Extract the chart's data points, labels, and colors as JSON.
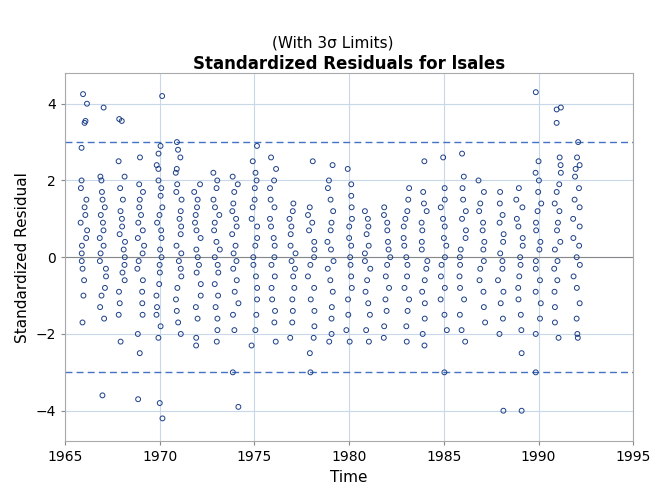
{
  "title": "Standardized Residuals for lsales",
  "subtitle": "(With 3σ Limits)",
  "xlabel": "Time",
  "ylabel": "Standardized Residual",
  "xlim": [
    1965,
    1995
  ],
  "ylim": [
    -4.8,
    4.8
  ],
  "xticks": [
    1965,
    1970,
    1975,
    1980,
    1985,
    1990,
    1995
  ],
  "yticks": [
    -4,
    -2,
    0,
    2,
    4
  ],
  "hline_y": 0,
  "dashed_lines": [
    3.0,
    -3.0
  ],
  "marker_color": "#1c3f87",
  "marker_size": 3.5,
  "marker_linewidth": 0.7,
  "background_color": "#ffffff",
  "plot_bg_color": "#ffffff",
  "grid_color": "#c8d8e8",
  "dashed_color": "#4472c4",
  "seed": 42,
  "special_points": [
    [
      1966,
      4.25
    ],
    [
      1966,
      4.0
    ],
    [
      1966,
      3.55
    ],
    [
      1966,
      3.5
    ],
    [
      1966,
      2.85
    ],
    [
      1966,
      2.0
    ],
    [
      1966,
      1.8
    ],
    [
      1966,
      1.5
    ],
    [
      1966,
      1.3
    ],
    [
      1966,
      1.1
    ],
    [
      1966,
      0.9
    ],
    [
      1966,
      0.7
    ],
    [
      1966,
      0.5
    ],
    [
      1966,
      0.3
    ],
    [
      1966,
      0.1
    ],
    [
      1966,
      -0.1
    ],
    [
      1966,
      -0.3
    ],
    [
      1966,
      -0.6
    ],
    [
      1966,
      -1.0
    ],
    [
      1966,
      -1.7
    ],
    [
      1967,
      3.9
    ],
    [
      1967,
      2.1
    ],
    [
      1967,
      2.0
    ],
    [
      1967,
      1.7
    ],
    [
      1967,
      1.5
    ],
    [
      1967,
      1.3
    ],
    [
      1967,
      1.1
    ],
    [
      1967,
      0.9
    ],
    [
      1967,
      0.7
    ],
    [
      1967,
      0.5
    ],
    [
      1967,
      0.3
    ],
    [
      1967,
      0.1
    ],
    [
      1967,
      -0.1
    ],
    [
      1967,
      -0.3
    ],
    [
      1967,
      -0.5
    ],
    [
      1967,
      -0.8
    ],
    [
      1967,
      -1.0
    ],
    [
      1967,
      -1.3
    ],
    [
      1967,
      -1.6
    ],
    [
      1967,
      -3.6
    ],
    [
      1968,
      3.6
    ],
    [
      1968,
      3.55
    ],
    [
      1968,
      2.5
    ],
    [
      1968,
      2.1
    ],
    [
      1968,
      1.8
    ],
    [
      1968,
      1.5
    ],
    [
      1968,
      1.2
    ],
    [
      1968,
      1.0
    ],
    [
      1968,
      0.8
    ],
    [
      1968,
      0.6
    ],
    [
      1968,
      0.4
    ],
    [
      1968,
      0.2
    ],
    [
      1968,
      0.0
    ],
    [
      1968,
      -0.2
    ],
    [
      1968,
      -0.4
    ],
    [
      1968,
      -0.6
    ],
    [
      1968,
      -0.9
    ],
    [
      1968,
      -1.2
    ],
    [
      1968,
      -1.5
    ],
    [
      1968,
      -2.2
    ],
    [
      1969,
      2.6
    ],
    [
      1969,
      1.9
    ],
    [
      1969,
      1.7
    ],
    [
      1969,
      1.5
    ],
    [
      1969,
      1.3
    ],
    [
      1969,
      1.1
    ],
    [
      1969,
      0.9
    ],
    [
      1969,
      0.7
    ],
    [
      1969,
      0.5
    ],
    [
      1969,
      0.3
    ],
    [
      1969,
      0.1
    ],
    [
      1969,
      -0.1
    ],
    [
      1969,
      -0.3
    ],
    [
      1969,
      -0.6
    ],
    [
      1969,
      -0.9
    ],
    [
      1969,
      -1.2
    ],
    [
      1969,
      -1.5
    ],
    [
      1969,
      -2.0
    ],
    [
      1969,
      -2.5
    ],
    [
      1969,
      -3.7
    ],
    [
      1970,
      4.2
    ],
    [
      1970,
      2.9
    ],
    [
      1970,
      2.7
    ],
    [
      1970,
      2.4
    ],
    [
      1970,
      2.3
    ],
    [
      1970,
      2.0
    ],
    [
      1970,
      1.8
    ],
    [
      1970,
      1.6
    ],
    [
      1970,
      1.3
    ],
    [
      1970,
      1.1
    ],
    [
      1970,
      0.9
    ],
    [
      1970,
      0.7
    ],
    [
      1970,
      0.5
    ],
    [
      1970,
      0.2
    ],
    [
      1970,
      0.0
    ],
    [
      1970,
      -0.2
    ],
    [
      1970,
      -0.4
    ],
    [
      1970,
      -0.7
    ],
    [
      1970,
      -1.0
    ],
    [
      1970,
      -1.3
    ],
    [
      1970,
      -1.5
    ],
    [
      1970,
      -1.8
    ],
    [
      1970,
      -2.1
    ],
    [
      1970,
      -3.8
    ],
    [
      1970,
      -4.2
    ],
    [
      1971,
      3.0
    ],
    [
      1971,
      2.8
    ],
    [
      1971,
      2.6
    ],
    [
      1971,
      2.3
    ],
    [
      1971,
      2.2
    ],
    [
      1971,
      1.9
    ],
    [
      1971,
      1.7
    ],
    [
      1971,
      1.5
    ],
    [
      1971,
      1.2
    ],
    [
      1971,
      1.0
    ],
    [
      1971,
      0.8
    ],
    [
      1971,
      0.6
    ],
    [
      1971,
      0.3
    ],
    [
      1971,
      0.1
    ],
    [
      1971,
      -0.1
    ],
    [
      1971,
      -0.3
    ],
    [
      1971,
      -0.5
    ],
    [
      1971,
      -0.8
    ],
    [
      1971,
      -1.1
    ],
    [
      1971,
      -1.4
    ],
    [
      1971,
      -1.7
    ],
    [
      1971,
      -2.0
    ],
    [
      1972,
      1.9
    ],
    [
      1972,
      1.7
    ],
    [
      1972,
      1.5
    ],
    [
      1972,
      1.3
    ],
    [
      1972,
      1.1
    ],
    [
      1972,
      0.9
    ],
    [
      1972,
      0.7
    ],
    [
      1972,
      0.5
    ],
    [
      1972,
      0.2
    ],
    [
      1972,
      0.0
    ],
    [
      1972,
      -0.2
    ],
    [
      1972,
      -0.4
    ],
    [
      1972,
      -0.7
    ],
    [
      1972,
      -1.0
    ],
    [
      1972,
      -1.3
    ],
    [
      1972,
      -1.6
    ],
    [
      1972,
      -2.1
    ],
    [
      1972,
      -2.3
    ],
    [
      1973,
      2.2
    ],
    [
      1973,
      2.0
    ],
    [
      1973,
      1.8
    ],
    [
      1973,
      1.5
    ],
    [
      1973,
      1.3
    ],
    [
      1973,
      1.1
    ],
    [
      1973,
      0.9
    ],
    [
      1973,
      0.7
    ],
    [
      1973,
      0.4
    ],
    [
      1973,
      0.2
    ],
    [
      1973,
      0.0
    ],
    [
      1973,
      -0.2
    ],
    [
      1973,
      -0.4
    ],
    [
      1973,
      -0.7
    ],
    [
      1973,
      -1.0
    ],
    [
      1973,
      -1.3
    ],
    [
      1973,
      -1.6
    ],
    [
      1973,
      -1.9
    ],
    [
      1973,
      -2.2
    ],
    [
      1974,
      2.1
    ],
    [
      1974,
      1.9
    ],
    [
      1974,
      1.7
    ],
    [
      1974,
      1.4
    ],
    [
      1974,
      1.2
    ],
    [
      1974,
      1.0
    ],
    [
      1974,
      0.8
    ],
    [
      1974,
      0.6
    ],
    [
      1974,
      0.3
    ],
    [
      1974,
      0.1
    ],
    [
      1974,
      -0.1
    ],
    [
      1974,
      -0.3
    ],
    [
      1974,
      -0.6
    ],
    [
      1974,
      -0.9
    ],
    [
      1974,
      -1.2
    ],
    [
      1974,
      -1.5
    ],
    [
      1974,
      -1.9
    ],
    [
      1974,
      -3.0
    ],
    [
      1974,
      -3.9
    ],
    [
      1975,
      2.9
    ],
    [
      1975,
      2.5
    ],
    [
      1975,
      2.2
    ],
    [
      1975,
      2.0
    ],
    [
      1975,
      1.8
    ],
    [
      1975,
      1.5
    ],
    [
      1975,
      1.3
    ],
    [
      1975,
      1.0
    ],
    [
      1975,
      0.8
    ],
    [
      1975,
      0.5
    ],
    [
      1975,
      0.3
    ],
    [
      1975,
      0.0
    ],
    [
      1975,
      -0.2
    ],
    [
      1975,
      -0.5
    ],
    [
      1975,
      -0.8
    ],
    [
      1975,
      -1.1
    ],
    [
      1975,
      -1.5
    ],
    [
      1975,
      -1.9
    ],
    [
      1975,
      -2.3
    ],
    [
      1976,
      2.6
    ],
    [
      1976,
      2.3
    ],
    [
      1976,
      2.0
    ],
    [
      1976,
      1.8
    ],
    [
      1976,
      1.5
    ],
    [
      1976,
      1.3
    ],
    [
      1976,
      1.0
    ],
    [
      1976,
      0.8
    ],
    [
      1976,
      0.5
    ],
    [
      1976,
      0.3
    ],
    [
      1976,
      0.0
    ],
    [
      1976,
      -0.2
    ],
    [
      1976,
      -0.5
    ],
    [
      1976,
      -0.8
    ],
    [
      1976,
      -1.1
    ],
    [
      1976,
      -1.4
    ],
    [
      1976,
      -1.7
    ],
    [
      1976,
      -2.2
    ],
    [
      1977,
      1.4
    ],
    [
      1977,
      1.2
    ],
    [
      1977,
      1.0
    ],
    [
      1977,
      0.8
    ],
    [
      1977,
      0.6
    ],
    [
      1977,
      0.3
    ],
    [
      1977,
      0.1
    ],
    [
      1977,
      -0.1
    ],
    [
      1977,
      -0.3
    ],
    [
      1977,
      -0.5
    ],
    [
      1977,
      -0.8
    ],
    [
      1977,
      -1.1
    ],
    [
      1977,
      -1.4
    ],
    [
      1977,
      -1.7
    ],
    [
      1977,
      -2.1
    ],
    [
      1978,
      2.5
    ],
    [
      1978,
      1.3
    ],
    [
      1978,
      1.1
    ],
    [
      1978,
      0.9
    ],
    [
      1978,
      0.7
    ],
    [
      1978,
      0.4
    ],
    [
      1978,
      0.2
    ],
    [
      1978,
      0.0
    ],
    [
      1978,
      -0.2
    ],
    [
      1978,
      -0.5
    ],
    [
      1978,
      -0.8
    ],
    [
      1978,
      -1.1
    ],
    [
      1978,
      -1.4
    ],
    [
      1978,
      -1.8
    ],
    [
      1978,
      -2.1
    ],
    [
      1978,
      -2.5
    ],
    [
      1978,
      -3.0
    ],
    [
      1979,
      2.4
    ],
    [
      1979,
      2.0
    ],
    [
      1979,
      1.8
    ],
    [
      1979,
      1.5
    ],
    [
      1979,
      1.2
    ],
    [
      1979,
      0.9
    ],
    [
      1979,
      0.7
    ],
    [
      1979,
      0.4
    ],
    [
      1979,
      0.2
    ],
    [
      1979,
      -0.1
    ],
    [
      1979,
      -0.3
    ],
    [
      1979,
      -0.6
    ],
    [
      1979,
      -0.9
    ],
    [
      1979,
      -1.3
    ],
    [
      1979,
      -1.6
    ],
    [
      1979,
      -2.0
    ],
    [
      1979,
      -2.2
    ],
    [
      1980,
      2.3
    ],
    [
      1980,
      1.9
    ],
    [
      1980,
      1.6
    ],
    [
      1980,
      1.3
    ],
    [
      1980,
      1.0
    ],
    [
      1980,
      0.8
    ],
    [
      1980,
      0.5
    ],
    [
      1980,
      0.3
    ],
    [
      1980,
      0.0
    ],
    [
      1980,
      -0.2
    ],
    [
      1980,
      -0.5
    ],
    [
      1980,
      -0.8
    ],
    [
      1980,
      -1.1
    ],
    [
      1980,
      -1.5
    ],
    [
      1980,
      -1.9
    ],
    [
      1980,
      -2.2
    ],
    [
      1981,
      1.2
    ],
    [
      1981,
      1.0
    ],
    [
      1981,
      0.8
    ],
    [
      1981,
      0.6
    ],
    [
      1981,
      0.3
    ],
    [
      1981,
      0.1
    ],
    [
      1981,
      -0.1
    ],
    [
      1981,
      -0.3
    ],
    [
      1981,
      -0.6
    ],
    [
      1981,
      -0.9
    ],
    [
      1981,
      -1.2
    ],
    [
      1981,
      -1.5
    ],
    [
      1981,
      -1.9
    ],
    [
      1981,
      -2.2
    ],
    [
      1982,
      1.3
    ],
    [
      1982,
      1.1
    ],
    [
      1982,
      0.9
    ],
    [
      1982,
      0.7
    ],
    [
      1982,
      0.4
    ],
    [
      1982,
      0.2
    ],
    [
      1982,
      0.0
    ],
    [
      1982,
      -0.2
    ],
    [
      1982,
      -0.5
    ],
    [
      1982,
      -0.8
    ],
    [
      1982,
      -1.1
    ],
    [
      1982,
      -1.4
    ],
    [
      1982,
      -1.8
    ],
    [
      1982,
      -2.1
    ],
    [
      1983,
      1.8
    ],
    [
      1983,
      1.5
    ],
    [
      1983,
      1.2
    ],
    [
      1983,
      1.0
    ],
    [
      1983,
      0.8
    ],
    [
      1983,
      0.5
    ],
    [
      1983,
      0.3
    ],
    [
      1983,
      0.0
    ],
    [
      1983,
      -0.2
    ],
    [
      1983,
      -0.5
    ],
    [
      1983,
      -0.8
    ],
    [
      1983,
      -1.1
    ],
    [
      1983,
      -1.4
    ],
    [
      1983,
      -1.8
    ],
    [
      1983,
      -2.2
    ],
    [
      1984,
      2.5
    ],
    [
      1984,
      1.7
    ],
    [
      1984,
      1.4
    ],
    [
      1984,
      1.2
    ],
    [
      1984,
      0.9
    ],
    [
      1984,
      0.7
    ],
    [
      1984,
      0.4
    ],
    [
      1984,
      0.2
    ],
    [
      1984,
      -0.1
    ],
    [
      1984,
      -0.3
    ],
    [
      1984,
      -0.6
    ],
    [
      1984,
      -0.9
    ],
    [
      1984,
      -1.2
    ],
    [
      1984,
      -1.6
    ],
    [
      1984,
      -2.0
    ],
    [
      1984,
      -2.3
    ],
    [
      1985,
      2.6
    ],
    [
      1985,
      1.8
    ],
    [
      1985,
      1.5
    ],
    [
      1985,
      1.3
    ],
    [
      1985,
      1.0
    ],
    [
      1985,
      0.8
    ],
    [
      1985,
      0.5
    ],
    [
      1985,
      0.3
    ],
    [
      1985,
      0.0
    ],
    [
      1985,
      -0.2
    ],
    [
      1985,
      -0.5
    ],
    [
      1985,
      -0.8
    ],
    [
      1985,
      -1.1
    ],
    [
      1985,
      -1.5
    ],
    [
      1985,
      -1.9
    ],
    [
      1985,
      -3.0
    ],
    [
      1986,
      2.7
    ],
    [
      1986,
      2.1
    ],
    [
      1986,
      1.8
    ],
    [
      1986,
      1.5
    ],
    [
      1986,
      1.2
    ],
    [
      1986,
      1.0
    ],
    [
      1986,
      0.7
    ],
    [
      1986,
      0.5
    ],
    [
      1986,
      0.2
    ],
    [
      1986,
      0.0
    ],
    [
      1986,
      -0.2
    ],
    [
      1986,
      -0.5
    ],
    [
      1986,
      -0.8
    ],
    [
      1986,
      -1.1
    ],
    [
      1986,
      -1.5
    ],
    [
      1986,
      -1.9
    ],
    [
      1986,
      -2.2
    ],
    [
      1987,
      2.0
    ],
    [
      1987,
      1.7
    ],
    [
      1987,
      1.4
    ],
    [
      1987,
      1.2
    ],
    [
      1987,
      0.9
    ],
    [
      1987,
      0.7
    ],
    [
      1987,
      0.4
    ],
    [
      1987,
      0.2
    ],
    [
      1987,
      -0.1
    ],
    [
      1987,
      -0.3
    ],
    [
      1987,
      -0.6
    ],
    [
      1987,
      -0.9
    ],
    [
      1987,
      -1.3
    ],
    [
      1987,
      -1.7
    ],
    [
      1988,
      1.7
    ],
    [
      1988,
      1.4
    ],
    [
      1988,
      1.1
    ],
    [
      1988,
      0.9
    ],
    [
      1988,
      0.6
    ],
    [
      1988,
      0.4
    ],
    [
      1988,
      0.1
    ],
    [
      1988,
      -0.1
    ],
    [
      1988,
      -0.3
    ],
    [
      1988,
      -0.6
    ],
    [
      1988,
      -0.9
    ],
    [
      1988,
      -1.2
    ],
    [
      1988,
      -1.6
    ],
    [
      1988,
      -2.0
    ],
    [
      1988,
      -4.0
    ],
    [
      1989,
      1.8
    ],
    [
      1989,
      1.5
    ],
    [
      1989,
      1.3
    ],
    [
      1989,
      1.0
    ],
    [
      1989,
      0.8
    ],
    [
      1989,
      0.5
    ],
    [
      1989,
      0.3
    ],
    [
      1989,
      0.0
    ],
    [
      1989,
      -0.2
    ],
    [
      1989,
      -0.5
    ],
    [
      1989,
      -0.8
    ],
    [
      1989,
      -1.1
    ],
    [
      1989,
      -1.5
    ],
    [
      1989,
      -1.9
    ],
    [
      1989,
      -2.5
    ],
    [
      1989,
      -4.0
    ],
    [
      1990,
      4.3
    ],
    [
      1990,
      2.5
    ],
    [
      1990,
      2.2
    ],
    [
      1990,
      2.0
    ],
    [
      1990,
      1.7
    ],
    [
      1990,
      1.4
    ],
    [
      1990,
      1.2
    ],
    [
      1990,
      0.9
    ],
    [
      1990,
      0.7
    ],
    [
      1990,
      0.4
    ],
    [
      1990,
      0.2
    ],
    [
      1990,
      -0.1
    ],
    [
      1990,
      -0.3
    ],
    [
      1990,
      -0.6
    ],
    [
      1990,
      -0.9
    ],
    [
      1990,
      -1.2
    ],
    [
      1990,
      -1.6
    ],
    [
      1990,
      -2.0
    ],
    [
      1990,
      -3.0
    ],
    [
      1991,
      3.9
    ],
    [
      1991,
      3.85
    ],
    [
      1991,
      3.5
    ],
    [
      1991,
      2.6
    ],
    [
      1991,
      2.4
    ],
    [
      1991,
      2.2
    ],
    [
      1991,
      1.9
    ],
    [
      1991,
      1.7
    ],
    [
      1991,
      1.4
    ],
    [
      1991,
      1.2
    ],
    [
      1991,
      0.9
    ],
    [
      1991,
      0.7
    ],
    [
      1991,
      0.4
    ],
    [
      1991,
      0.2
    ],
    [
      1991,
      -0.1
    ],
    [
      1991,
      -0.3
    ],
    [
      1991,
      -0.6
    ],
    [
      1991,
      -0.9
    ],
    [
      1991,
      -1.3
    ],
    [
      1991,
      -1.7
    ],
    [
      1991,
      -2.1
    ],
    [
      1992,
      3.0
    ],
    [
      1992,
      2.6
    ],
    [
      1992,
      2.4
    ],
    [
      1992,
      2.3
    ],
    [
      1992,
      2.1
    ],
    [
      1992,
      1.8
    ],
    [
      1992,
      1.5
    ],
    [
      1992,
      1.3
    ],
    [
      1992,
      1.0
    ],
    [
      1992,
      0.8
    ],
    [
      1992,
      0.5
    ],
    [
      1992,
      0.3
    ],
    [
      1992,
      0.0
    ],
    [
      1992,
      -0.2
    ],
    [
      1992,
      -0.5
    ],
    [
      1992,
      -0.8
    ],
    [
      1992,
      -1.2
    ],
    [
      1992,
      -1.6
    ],
    [
      1992,
      -2.0
    ],
    [
      1992,
      -2.1
    ]
  ]
}
